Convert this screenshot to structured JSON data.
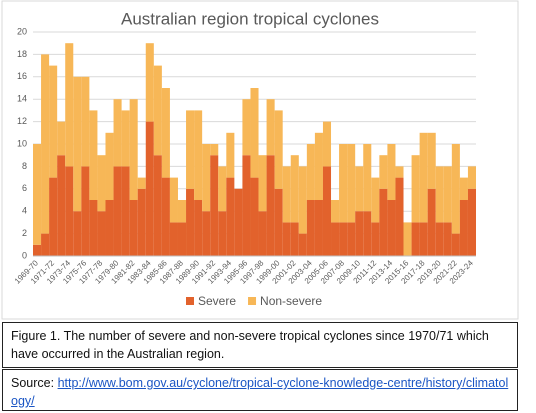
{
  "chart_data": {
    "type": "stacked_bar",
    "title": "Australian region tropical cyclones",
    "categories": [
      "1969-70",
      null,
      "1971-72",
      null,
      "1973-74",
      null,
      "1975-76",
      null,
      "1977-78",
      null,
      "1979-80",
      null,
      "1981-82",
      null,
      "1983-84",
      null,
      "1985-86",
      null,
      "1987-88",
      null,
      "1989-90",
      null,
      "1991-92",
      null,
      "1993-94",
      null,
      "1995-96",
      null,
      "1997-98",
      null,
      "1999-00",
      null,
      "2001-02",
      null,
      "2003-04",
      null,
      "2005-06",
      null,
      "2007-08",
      null,
      "2009-10",
      null,
      "2011-12",
      null,
      "2013-14",
      null,
      "2015-16",
      null,
      "2017-18",
      null,
      "2019-20",
      null,
      "2021-22",
      null,
      "2023-24"
    ],
    "series": [
      {
        "name": "Severe",
        "color": "#e2622c",
        "values": [
          1,
          2,
          7,
          9,
          8,
          4,
          8,
          5,
          4,
          5,
          8,
          8,
          5,
          6,
          12,
          9,
          7,
          3,
          3,
          6,
          5,
          4,
          9,
          4,
          7,
          6,
          9,
          7,
          4,
          9,
          6,
          3,
          3,
          2,
          5,
          5,
          8,
          3,
          3,
          3,
          4,
          4,
          3,
          6,
          5,
          7,
          0,
          3,
          3,
          6,
          3,
          3,
          2,
          5,
          6
        ]
      },
      {
        "name": "Non-severe",
        "color": "#f7b757",
        "values": [
          9,
          16,
          10,
          3,
          11,
          12,
          8,
          8,
          5,
          6,
          6,
          5,
          9,
          1,
          7,
          8,
          8,
          4,
          2,
          7,
          8,
          6,
          1,
          4,
          4,
          0,
          5,
          8,
          5,
          5,
          7,
          5,
          6,
          6,
          5,
          6,
          4,
          2,
          7,
          7,
          4,
          6,
          4,
          3,
          5,
          1,
          3,
          6,
          8,
          5,
          5,
          5,
          8,
          2,
          2
        ]
      }
    ],
    "ylim": [
      0,
      20
    ],
    "yticks": [
      0,
      2,
      4,
      6,
      8,
      10,
      12,
      14,
      16,
      18,
      20
    ],
    "grid": true,
    "legend": "bottom"
  },
  "caption": "Figure 1. The number of severe and non-severe tropical cyclones since 1970/71 which have occurred in the Australian region.",
  "source": {
    "label": "Source:",
    "link": "http://www.bom.gov.au/cyclone/tropical-cyclone-knowledge-centre/history/climatology/"
  }
}
